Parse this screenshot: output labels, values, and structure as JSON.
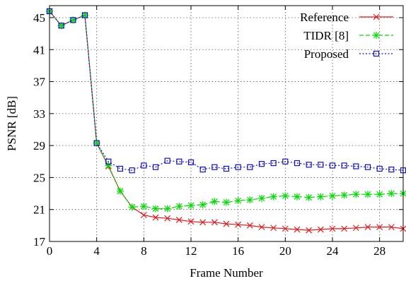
{
  "chart_data": {
    "type": "line",
    "xlabel": "Frame Number",
    "ylabel": "PSNR [dB]",
    "xlim": [
      0,
      30
    ],
    "ylim": [
      17,
      46.5
    ],
    "xticks": [
      0,
      4,
      8,
      12,
      16,
      20,
      24,
      28
    ],
    "yticks": [
      17,
      21,
      25,
      29,
      33,
      37,
      41,
      45
    ],
    "grid": true,
    "legend_position": "top-right",
    "x": [
      0,
      1,
      2,
      3,
      4,
      5,
      6,
      7,
      8,
      9,
      10,
      11,
      12,
      13,
      14,
      15,
      16,
      17,
      18,
      19,
      20,
      21,
      22,
      23,
      24,
      25,
      26,
      27,
      28,
      29,
      30
    ],
    "series": [
      {
        "name": "Reference",
        "color": "#e41a1c",
        "marker": "x",
        "dash": "solid",
        "values": [
          45.8,
          44.0,
          44.7,
          45.3,
          29.3,
          26.4,
          23.3,
          21.3,
          20.3,
          20.0,
          19.9,
          19.7,
          19.5,
          19.4,
          19.4,
          19.2,
          19.1,
          19.0,
          18.8,
          18.7,
          18.6,
          18.5,
          18.4,
          18.5,
          18.6,
          18.6,
          18.7,
          18.8,
          18.8,
          18.8,
          18.6
        ]
      },
      {
        "name": "TIDR [8]",
        "color": "#00dd00",
        "marker": "*",
        "dash": "dashed",
        "values": [
          45.8,
          44.0,
          44.7,
          45.3,
          29.3,
          26.5,
          23.3,
          21.3,
          21.4,
          21.1,
          21.1,
          21.4,
          21.5,
          21.6,
          22.0,
          21.9,
          22.1,
          22.2,
          22.4,
          22.6,
          22.7,
          22.6,
          22.5,
          22.6,
          22.7,
          22.8,
          22.9,
          22.9,
          22.9,
          23.0,
          23.0
        ]
      },
      {
        "name": "Proposed",
        "color": "#1010cc",
        "marker": "square",
        "dash": "dotted",
        "values": [
          45.8,
          44.0,
          44.7,
          45.3,
          29.3,
          27.0,
          26.1,
          25.9,
          26.5,
          26.3,
          27.1,
          27.0,
          26.9,
          26.0,
          26.3,
          26.1,
          26.3,
          26.3,
          26.7,
          26.8,
          27.0,
          26.8,
          26.6,
          26.6,
          26.5,
          26.5,
          26.4,
          26.3,
          26.1,
          26.0,
          25.9
        ]
      }
    ]
  }
}
